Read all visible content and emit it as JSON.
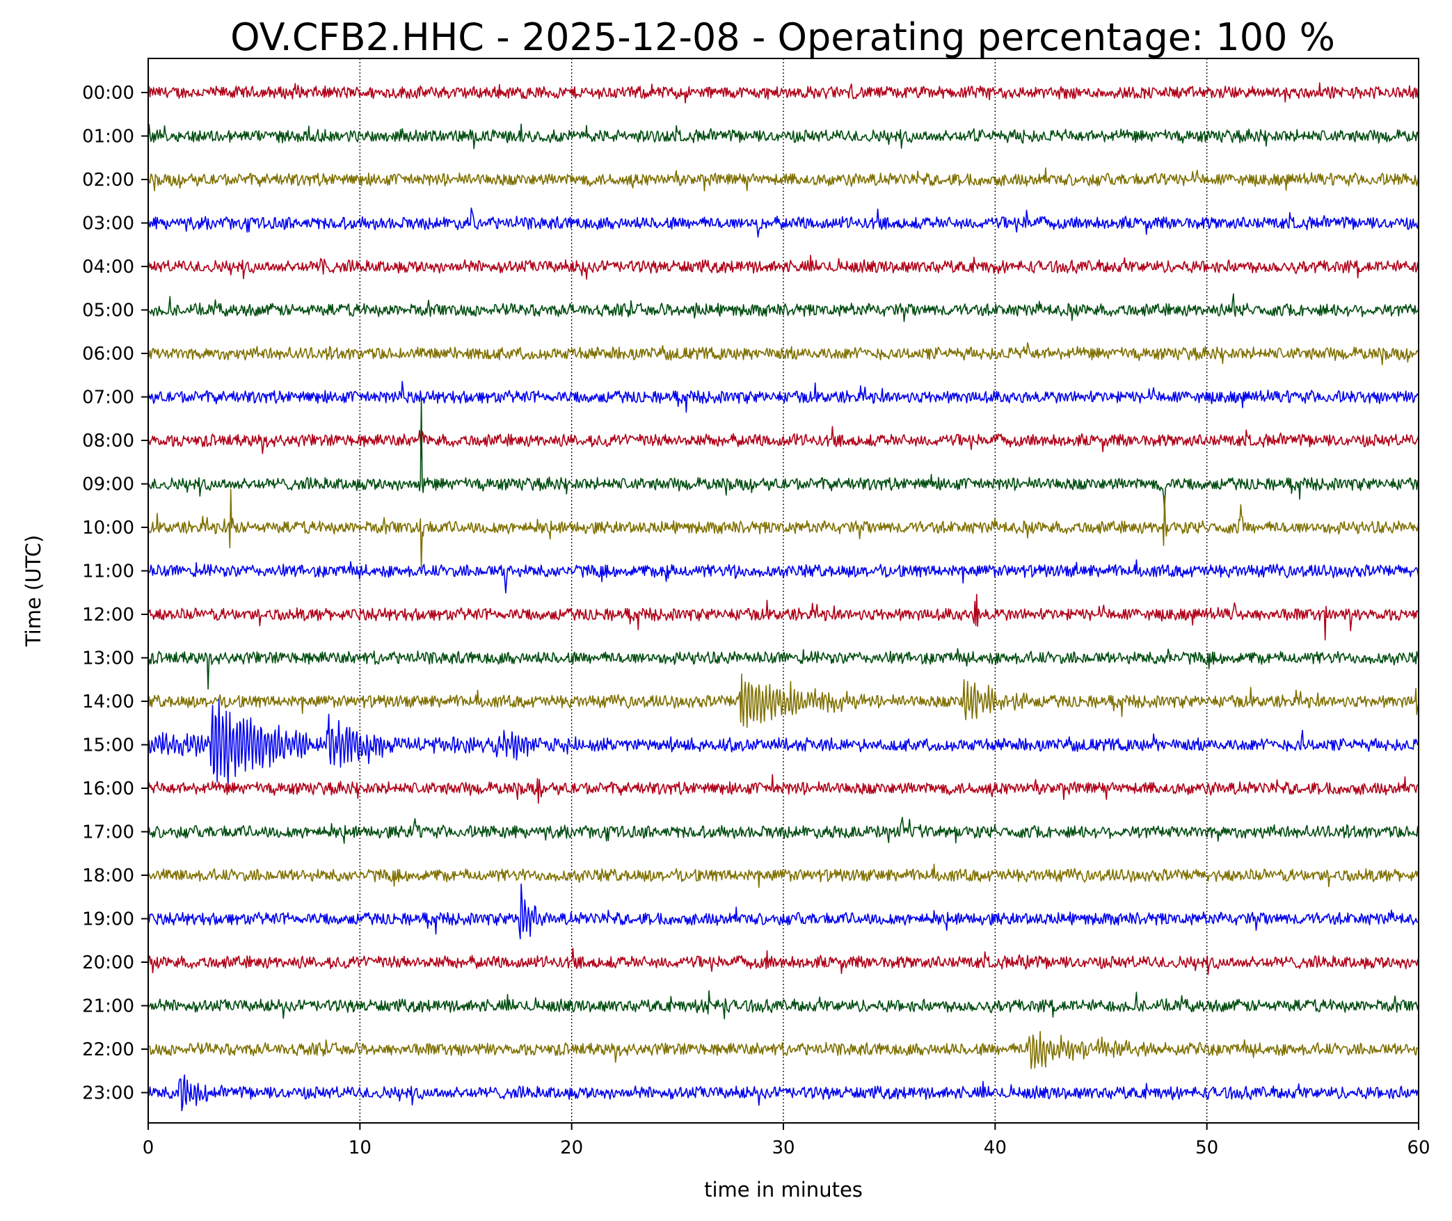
{
  "chart_data": {
    "type": "line",
    "title": "OV.CFB2.HHC - 2025-12-08 - Operating percentage: 100 %",
    "xlabel": "time in minutes",
    "ylabel": "Time (UTC)",
    "xlim": [
      0,
      60
    ],
    "x_ticks": [
      "0",
      "10",
      "20",
      "30",
      "40",
      "50",
      "60"
    ],
    "grid": "vertical dotted lines at x ticks",
    "color_cycle": [
      "#b00018",
      "#004d10",
      "#7f7000",
      "#0000f0"
    ],
    "series": [
      {
        "hour": "00:00",
        "events": [
          {
            "minute": 39.7,
            "amp": 0.6
          }
        ]
      },
      {
        "hour": "01:00",
        "events": [
          {
            "minute": 39.0,
            "amp": 0.4
          },
          {
            "minute": 41.3,
            "amp": 0.35
          }
        ]
      },
      {
        "hour": "02:00",
        "events": [
          {
            "minute": 48.0,
            "amp": 0.3
          }
        ]
      },
      {
        "hour": "03:00",
        "events": [
          {
            "minute": 15.3,
            "amp": 1.0
          },
          {
            "minute": 28.8,
            "amp": 0.6
          },
          {
            "minute": 41.5,
            "amp": 0.6
          }
        ]
      },
      {
        "hour": "04:00",
        "events": [
          {
            "minute": 8.2,
            "amp": 0.5
          },
          {
            "minute": 20.5,
            "amp": 0.6
          },
          {
            "minute": 40.0,
            "amp": 0.4
          }
        ]
      },
      {
        "hour": "05:00",
        "events": [
          {
            "minute": 25.8,
            "amp": 0.5
          },
          {
            "minute": 51.3,
            "amp": 1.4
          }
        ]
      },
      {
        "hour": "06:00",
        "events": [
          {
            "minute": 28.1,
            "amp": 0.6
          },
          {
            "minute": 41.5,
            "amp": 0.5
          }
        ]
      },
      {
        "hour": "07:00",
        "events": [
          {
            "minute": 12.0,
            "amp": 0.5
          },
          {
            "minute": 57.0,
            "amp": 0.4
          }
        ]
      },
      {
        "hour": "08:00",
        "events": [
          {
            "minute": 12.9,
            "amp": 2.8
          },
          {
            "minute": 30.5,
            "amp": 0.4
          }
        ]
      },
      {
        "hour": "09:00",
        "events": [
          {
            "minute": 12.9,
            "amp": 2.6
          },
          {
            "minute": 37.0,
            "amp": 0.4
          },
          {
            "minute": 48.0,
            "amp": 1.5
          }
        ]
      },
      {
        "hour": "10:00",
        "events": [
          {
            "minute": 3.9,
            "amp": 1.5
          },
          {
            "minute": 12.9,
            "amp": 1.8
          },
          {
            "minute": 48.0,
            "amp": 2.2
          },
          {
            "minute": 51.6,
            "amp": 1.3
          }
        ]
      },
      {
        "hour": "11:00",
        "events": [
          {
            "minute": 16.9,
            "amp": 0.8
          },
          {
            "minute": 24.5,
            "amp": 0.7
          },
          {
            "minute": 27.8,
            "amp": 0.9
          },
          {
            "minute": 43.9,
            "amp": 0.6
          }
        ]
      },
      {
        "hour": "12:00",
        "events": [
          {
            "minute": 39.1,
            "amp": 0.9
          },
          {
            "minute": 51.3,
            "amp": 0.6
          },
          {
            "minute": 55.6,
            "amp": 1.1
          },
          {
            "minute": 56.8,
            "amp": 0.7
          }
        ]
      },
      {
        "hour": "13:00",
        "events": [
          {
            "minute": 2.8,
            "amp": 1.0
          },
          {
            "minute": 48.2,
            "amp": 0.7
          }
        ]
      },
      {
        "hour": "14:00",
        "events": [
          {
            "minute": 28.0,
            "amp": 1.0,
            "coda": 6.0
          },
          {
            "minute": 38.5,
            "amp": 0.8,
            "coda": 3.0
          },
          {
            "minute": 59.9,
            "amp": 0.8
          }
        ]
      },
      {
        "hour": "15:00",
        "events": [
          {
            "minute": 0.0,
            "amp": 0.3,
            "coda": 35.0
          },
          {
            "minute": 3.0,
            "amp": 1.6,
            "coda": 4.5
          },
          {
            "minute": 8.5,
            "amp": 1.3,
            "coda": 4.0
          },
          {
            "minute": 16.8,
            "amp": 0.9,
            "coda": 2.0
          },
          {
            "minute": 47.5,
            "amp": 0.6
          },
          {
            "minute": 54.5,
            "amp": 1.0
          }
        ]
      },
      {
        "hour": "16:00",
        "events": [
          {
            "minute": 18.4,
            "amp": 0.7
          },
          {
            "minute": 29.5,
            "amp": 0.8
          }
        ]
      },
      {
        "hour": "17:00",
        "events": [
          {
            "minute": 12.6,
            "amp": 0.9
          },
          {
            "minute": 35.6,
            "amp": 0.5
          },
          {
            "minute": 50.5,
            "amp": 0.4
          }
        ]
      },
      {
        "hour": "18:00",
        "events": [
          {
            "minute": 1.8,
            "amp": 0.3
          }
        ]
      },
      {
        "hour": "19:00",
        "events": [
          {
            "minute": 17.6,
            "amp": 1.2,
            "coda": 0.8
          },
          {
            "minute": 18.3,
            "amp": 0.9
          }
        ]
      },
      {
        "hour": "20:00",
        "events": [
          {
            "minute": 29.2,
            "amp": 0.4
          },
          {
            "minute": 41.5,
            "amp": 0.3
          }
        ]
      },
      {
        "hour": "21:00",
        "events": [
          {
            "minute": 26.5,
            "amp": 0.5
          },
          {
            "minute": 27.2,
            "amp": 0.5
          }
        ]
      },
      {
        "hour": "22:00",
        "events": [
          {
            "minute": 41.6,
            "amp": 0.9,
            "coda": 3.0
          },
          {
            "minute": 44.5,
            "amp": 0.3,
            "coda": 5.5
          }
        ]
      },
      {
        "hour": "23:00",
        "events": [
          {
            "minute": 1.5,
            "amp": 0.9,
            "coda": 1.5
          },
          {
            "minute": 59.0,
            "amp": 0.3
          }
        ]
      }
    ]
  }
}
